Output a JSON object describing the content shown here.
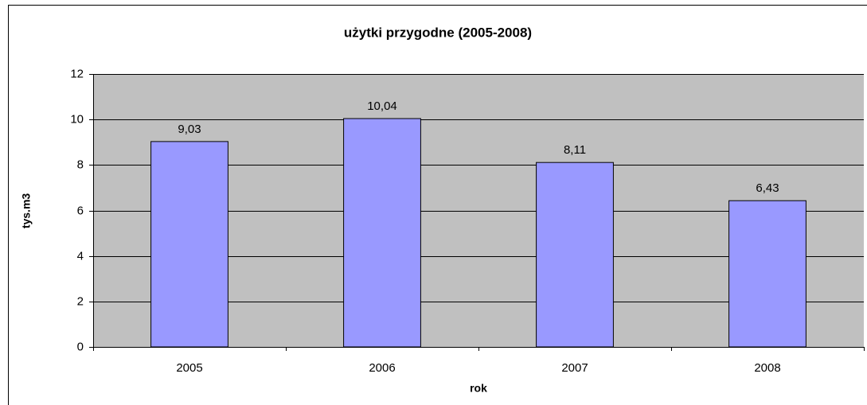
{
  "chart_data": {
    "type": "bar",
    "title": "użytki przygodne (2005-2008)",
    "x_label": "rok",
    "y_label": "tys.m3",
    "categories": [
      "2005",
      "2006",
      "2007",
      "2008"
    ],
    "values": [
      9.03,
      10.04,
      8.11,
      6.43
    ],
    "value_labels": [
      "9,03",
      "10,04",
      "8,11",
      "6,43"
    ],
    "color": "#9999ff",
    "ylim": [
      0,
      12
    ],
    "yticks": [
      0,
      2,
      4,
      6,
      8,
      10,
      12
    ],
    "grid": true
  }
}
